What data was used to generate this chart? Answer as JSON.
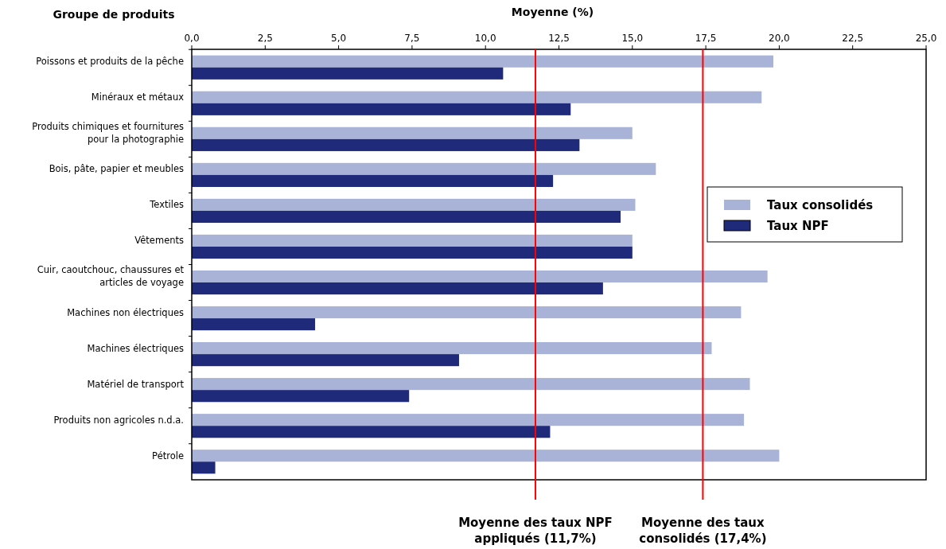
{
  "chart_data": {
    "type": "bar",
    "orientation": "horizontal",
    "xlabel": "Moyenne (%)",
    "ylabel": "Groupe de produits",
    "categories": [
      "Poissons et produits de la pêche",
      "Minéraux et métaux",
      "Produits chimiques et fournitures pour la photographie",
      "Bois, pâte, papier et meubles",
      "Textiles",
      "Vêtements",
      "Cuir, caoutchouc, chaussures et articles de voyage",
      "Machines non électriques",
      "Machines électriques",
      "Matériel de transport",
      "Produits non agricoles n.d.a.",
      "Pétrole"
    ],
    "series": [
      {
        "name": "Taux consolidés",
        "color": "#a9b3d8",
        "values": [
          19.8,
          19.4,
          15.0,
          15.8,
          15.1,
          15.0,
          19.6,
          18.7,
          17.7,
          19.0,
          18.8,
          20.0
        ]
      },
      {
        "name": "Taux NPF",
        "color": "#1f2a7a",
        "values": [
          10.6,
          12.9,
          13.2,
          12.3,
          14.6,
          15.0,
          14.0,
          4.2,
          9.1,
          7.4,
          12.2,
          0.8
        ]
      }
    ],
    "xlim": [
      0,
      25
    ],
    "xticks": [
      {
        "value": 0,
        "label": "0,0"
      },
      {
        "value": 2.5,
        "label": "2,5"
      },
      {
        "value": 5,
        "label": "5,0"
      },
      {
        "value": 7.5,
        "label": "7,5"
      },
      {
        "value": 10,
        "label": "10,0"
      },
      {
        "value": 12.5,
        "label": "12,5"
      },
      {
        "value": 15,
        "label": "15,0"
      },
      {
        "value": 17.5,
        "label": "17,5"
      },
      {
        "value": 20,
        "label": "20,0"
      },
      {
        "value": 22.5,
        "label": "22,5"
      },
      {
        "value": 25,
        "label": "25,0"
      }
    ],
    "ref_lines": [
      {
        "axis": "x",
        "value": 11.7,
        "label": "Moyenne des taux NPF appliqués (11,7%)",
        "color": "#ff0000"
      },
      {
        "axis": "x",
        "value": 17.4,
        "label": "Moyenne des taux consolidés (17,4%)",
        "color": "#ff0000"
      }
    ],
    "legend": "right",
    "grid": false
  }
}
